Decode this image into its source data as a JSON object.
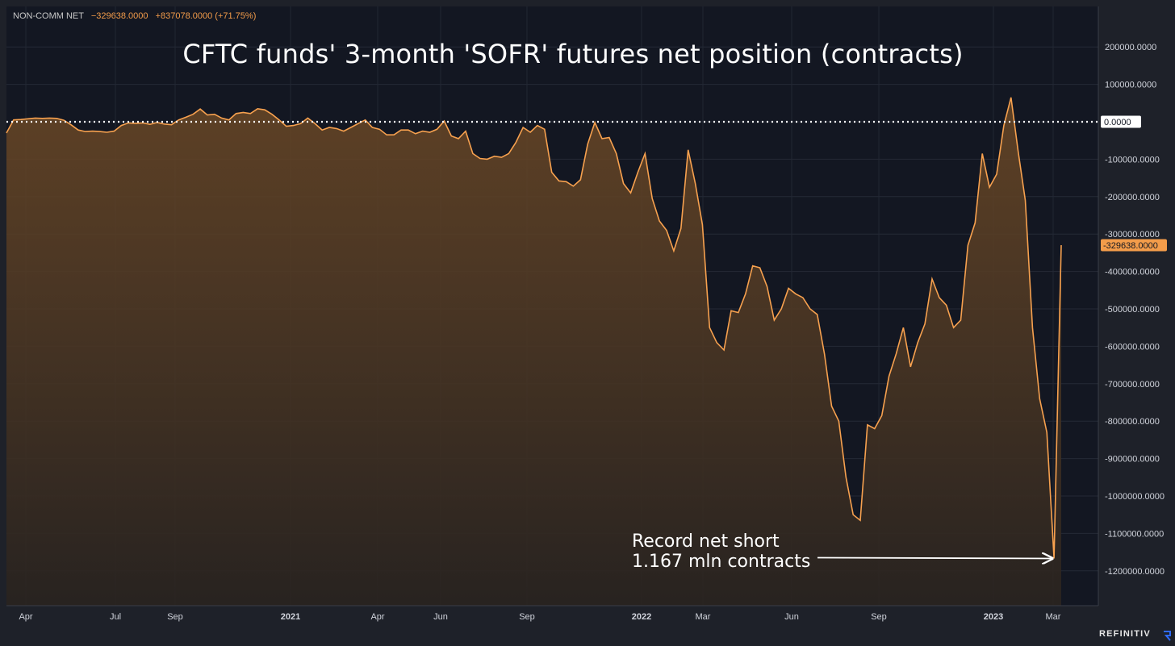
{
  "legend": {
    "series_name": "NON-COMM NET",
    "last_value": "−329638.0000",
    "change": "+837078.0000 (+71.75%)"
  },
  "title": "CFTC funds' 3-month 'SOFR' futures net position (contracts)",
  "annotation": {
    "line1": "Record net short",
    "line2": "1.167 mln contracts"
  },
  "brand": "REFINITIV",
  "colors": {
    "background": "#1e2129",
    "plot": "#131722",
    "line": "#f7a14f",
    "zero_line": "#ffffff",
    "badge": "#f39c4a"
  },
  "chart_data": {
    "type": "area",
    "title": "CFTC funds' 3-month 'SOFR' futures net position (contracts)",
    "series": [
      {
        "name": "NON-COMM NET",
        "values": [
          -30000,
          5000,
          6000,
          8000,
          10000,
          9000,
          10000,
          9000,
          4000,
          -8000,
          -22000,
          -26000,
          -25000,
          -26000,
          -28000,
          -25000,
          -10000,
          -3000,
          -4000,
          -3000,
          -7000,
          -2000,
          -6000,
          -8000,
          5000,
          12000,
          20000,
          34000,
          18000,
          20000,
          10000,
          5000,
          22000,
          25000,
          22000,
          35000,
          32000,
          20000,
          5000,
          -12000,
          -10000,
          -5000,
          10000,
          -5000,
          -22000,
          -15000,
          -18000,
          -25000,
          -15000,
          -5000,
          5000,
          -15000,
          -20000,
          -35000,
          -35000,
          -22000,
          -22000,
          -32000,
          -25000,
          -28000,
          -20000,
          2000,
          -38000,
          -45000,
          -25000,
          -85000,
          -98000,
          -100000,
          -92000,
          -95000,
          -85000,
          -55000,
          -15000,
          -28000,
          -10000,
          -20000,
          -135000,
          -158000,
          -160000,
          -172000,
          -155000,
          -60000,
          -2000,
          -45000,
          -42000,
          -85000,
          -165000,
          -190000,
          -135000,
          -85000,
          -205000,
          -265000,
          -290000,
          -345000,
          -285000,
          -75000,
          -165000,
          -275000,
          -550000,
          -590000,
          -610000,
          -505000,
          -510000,
          -460000,
          -385000,
          -390000,
          -440000,
          -530000,
          -500000,
          -445000,
          -460000,
          -470000,
          -500000,
          -515000,
          -620000,
          -760000,
          -800000,
          -950000,
          -1050000,
          -1065000,
          -810000,
          -820000,
          -785000,
          -680000,
          -620000,
          -550000,
          -655000,
          -590000,
          -540000,
          -420000,
          -470000,
          -490000,
          -550000,
          -530000,
          -330000,
          -270000,
          -85000,
          -175000,
          -140000,
          -10000,
          65000,
          -80000,
          -210000,
          -550000,
          -740000,
          -830000,
          -1167000,
          -329638
        ]
      }
    ],
    "x_axis": {
      "tick_labels": [
        "Apr",
        "Jul",
        "Sep",
        "2021",
        "Apr",
        "Jun",
        "Sep",
        "2022",
        "Mar",
        "Jun",
        "Sep",
        "2023",
        "Mar"
      ],
      "bold_labels": [
        "2021",
        "2022",
        "2023"
      ]
    },
    "y_axis": {
      "tick_labels": [
        "200000.0000",
        "100000.0000",
        "0.0000",
        "-100000.0000",
        "-200000.0000",
        "-300000.0000",
        "-400000.0000",
        "-500000.0000",
        "-600000.0000",
        "-700000.0000",
        "-800000.0000",
        "-900000.0000",
        "-1000000.0000",
        "-1100000.0000",
        "-1200000.0000"
      ],
      "tick_values": [
        200000,
        100000,
        0,
        -100000,
        -200000,
        -300000,
        -400000,
        -500000,
        -600000,
        -700000,
        -800000,
        -900000,
        -1000000,
        -1100000,
        -1200000
      ],
      "range": [
        -1300000,
        300000
      ],
      "zero_label": "0.0000",
      "last_value_label": "-329638.0000",
      "last_value": -329638
    },
    "reference_line": {
      "value": 0,
      "style": "dotted"
    },
    "record_low": {
      "value": -1167000
    },
    "grid": true,
    "legend": "top-left"
  }
}
